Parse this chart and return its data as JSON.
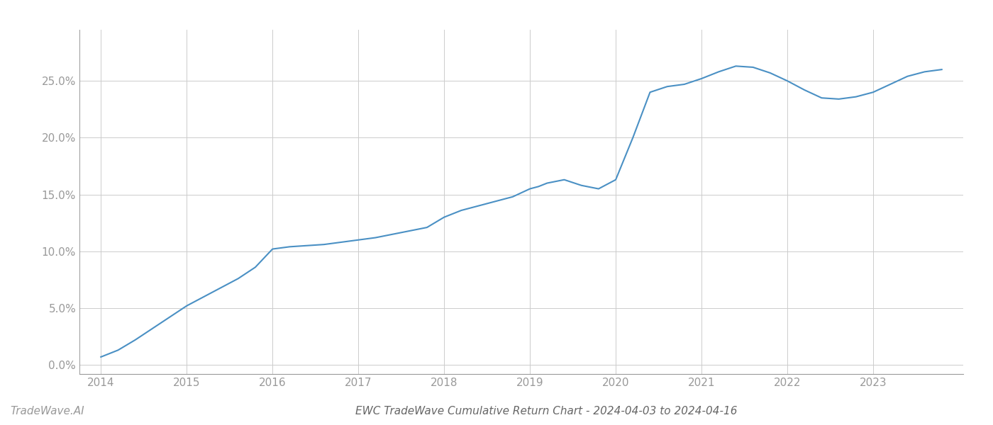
{
  "title": "EWC TradeWave Cumulative Return Chart - 2024-04-03 to 2024-04-16",
  "watermark": "TradeWave.AI",
  "x_values": [
    2014.0,
    2014.2,
    2014.4,
    2014.6,
    2014.8,
    2015.0,
    2015.2,
    2015.4,
    2015.6,
    2015.8,
    2016.0,
    2016.2,
    2016.4,
    2016.6,
    2016.8,
    2017.0,
    2017.2,
    2017.4,
    2017.6,
    2017.8,
    2018.0,
    2018.2,
    2018.4,
    2018.6,
    2018.8,
    2019.0,
    2019.1,
    2019.2,
    2019.4,
    2019.6,
    2019.8,
    2020.0,
    2020.2,
    2020.4,
    2020.6,
    2020.8,
    2021.0,
    2021.2,
    2021.4,
    2021.6,
    2021.8,
    2022.0,
    2022.2,
    2022.4,
    2022.6,
    2022.8,
    2023.0,
    2023.2,
    2023.4,
    2023.6,
    2023.8
  ],
  "y_values": [
    0.007,
    0.013,
    0.022,
    0.032,
    0.042,
    0.052,
    0.06,
    0.068,
    0.076,
    0.086,
    0.102,
    0.104,
    0.105,
    0.106,
    0.108,
    0.11,
    0.112,
    0.115,
    0.118,
    0.121,
    0.13,
    0.136,
    0.14,
    0.144,
    0.148,
    0.155,
    0.157,
    0.16,
    0.163,
    0.158,
    0.155,
    0.163,
    0.2,
    0.24,
    0.245,
    0.247,
    0.252,
    0.258,
    0.263,
    0.262,
    0.257,
    0.25,
    0.242,
    0.235,
    0.234,
    0.236,
    0.24,
    0.247,
    0.254,
    0.258,
    0.26
  ],
  "line_color": "#4a90c4",
  "line_width": 1.5,
  "background_color": "#ffffff",
  "grid_color": "#cccccc",
  "axis_color": "#999999",
  "tick_label_color": "#999999",
  "title_color": "#666666",
  "watermark_color": "#999999",
  "xlim": [
    2013.75,
    2024.05
  ],
  "ylim": [
    -0.008,
    0.295
  ],
  "yticks": [
    0.0,
    0.05,
    0.1,
    0.15,
    0.2,
    0.25
  ],
  "ytick_labels": [
    "0.0%",
    "5.0%",
    "10.0%",
    "15.0%",
    "20.0%",
    "25.0%"
  ],
  "xticks": [
    2014,
    2015,
    2016,
    2017,
    2018,
    2019,
    2020,
    2021,
    2022,
    2023
  ],
  "fontsize_title": 11,
  "fontsize_ticks": 11,
  "fontsize_watermark": 11
}
